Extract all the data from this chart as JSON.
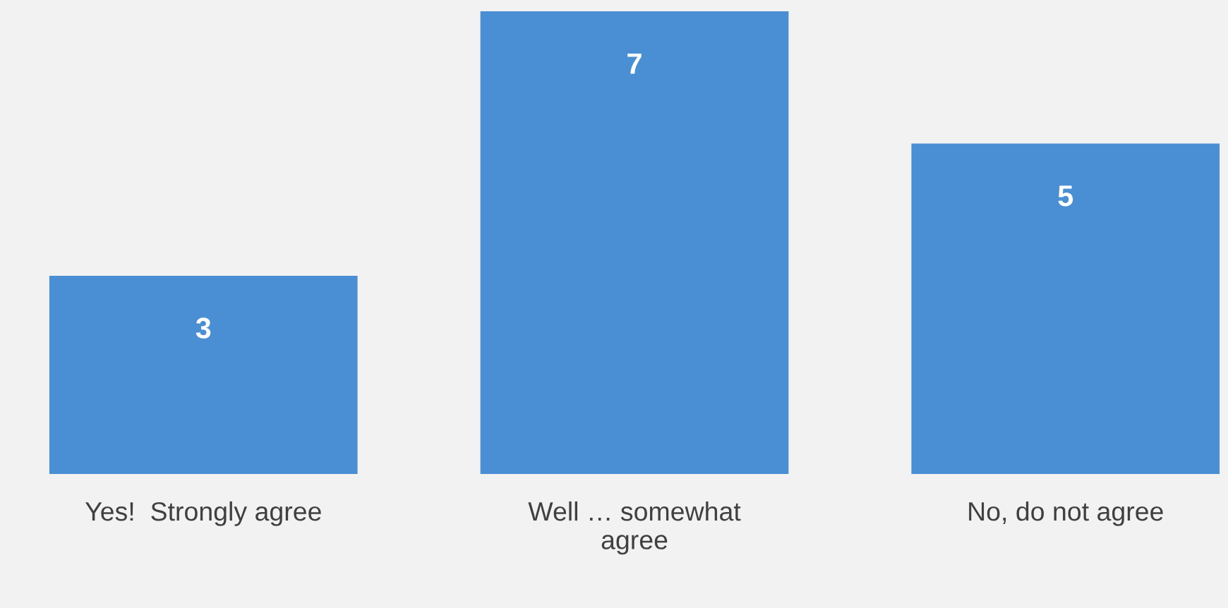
{
  "chart_data": {
    "type": "bar",
    "categories": [
      "Yes!  Strongly agree",
      "Well … somewhat\nagree",
      "No, do not agree"
    ],
    "values": [
      3,
      7,
      5
    ],
    "color": "#4a8fd3",
    "data_labels": true,
    "grid": false,
    "legend": false
  }
}
